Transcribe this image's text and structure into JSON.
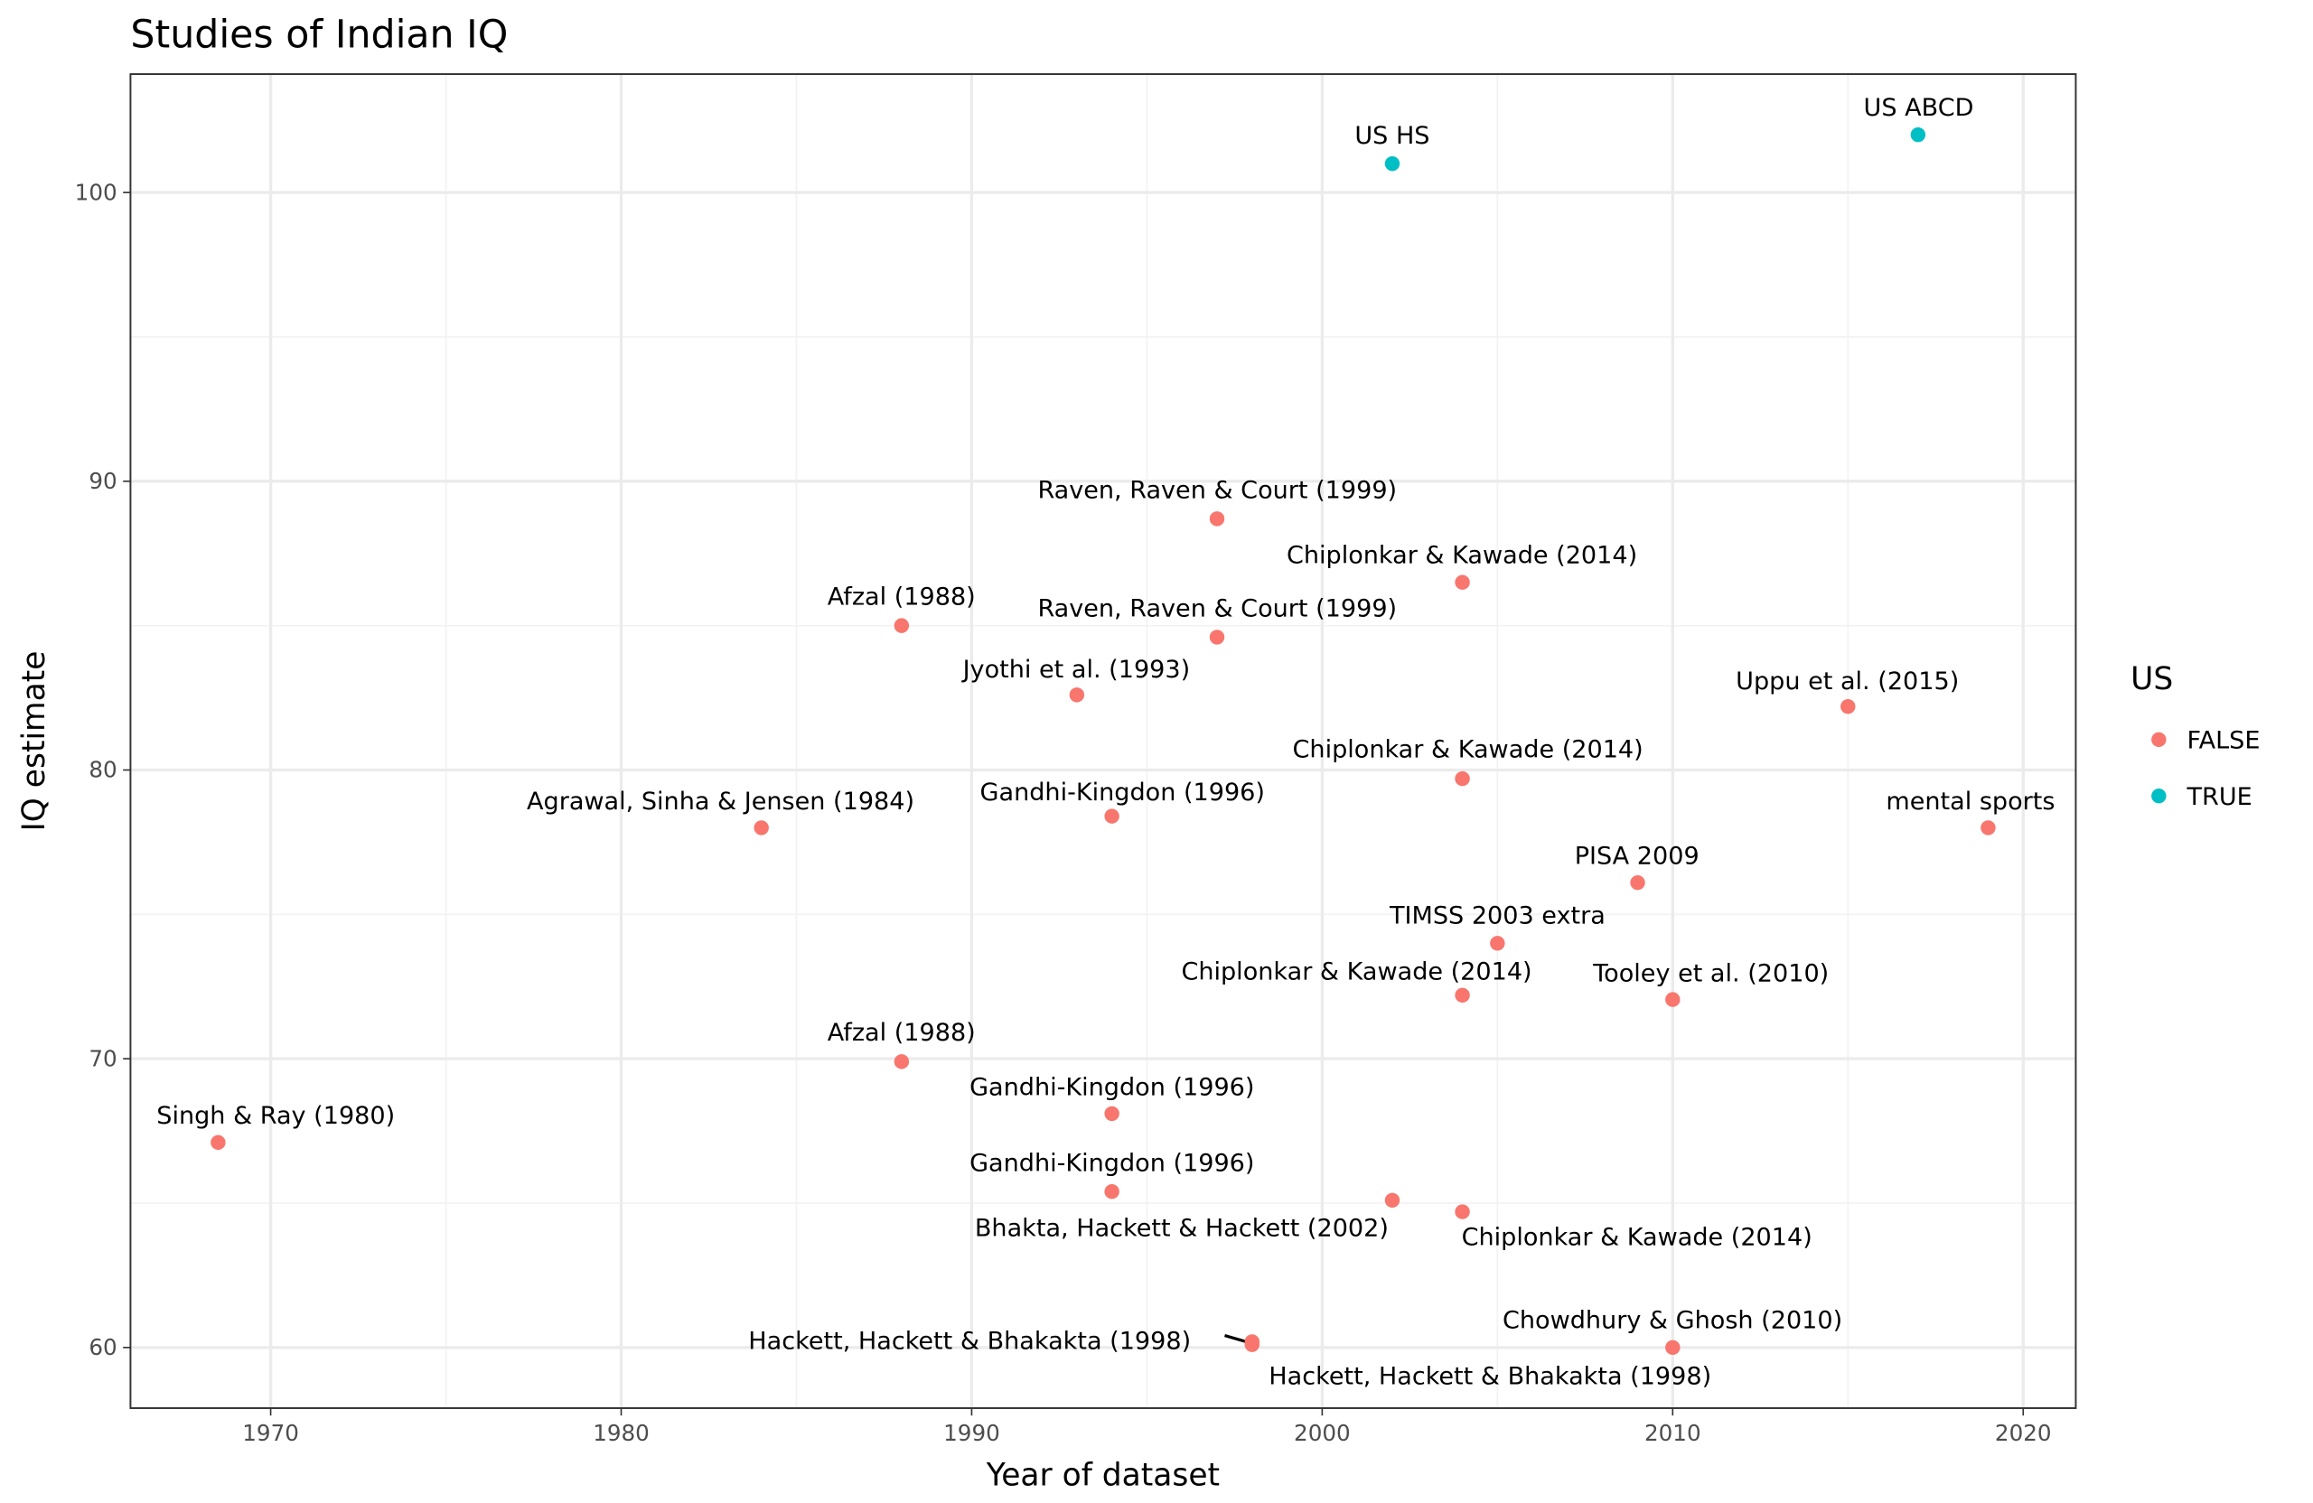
{
  "chart_data": {
    "type": "scatter",
    "title": "Studies of Indian IQ",
    "xlabel": "Year of dataset",
    "ylabel": "IQ estimate",
    "xlim": [
      1966,
      2021.5
    ],
    "ylim": [
      57.9,
      104.1
    ],
    "xticks": [
      1970,
      1980,
      1990,
      2000,
      2010,
      2020
    ],
    "yticks": [
      60,
      70,
      80,
      90,
      100
    ],
    "grid": true,
    "legend": {
      "title": "US",
      "placement": "right",
      "entries": [
        {
          "label": "FALSE",
          "color": "#F8766D"
        },
        {
          "label": "TRUE",
          "color": "#00BFC4"
        }
      ]
    },
    "points": [
      {
        "label": "Singh & Ray (1980)",
        "x": 1968.5,
        "y": 67.1,
        "us": "FALSE"
      },
      {
        "label": "Agrawal, Sinha & Jensen (1984)",
        "x": 1984,
        "y": 78.0,
        "us": "FALSE"
      },
      {
        "label": "Afzal (1988)",
        "x": 1988,
        "y": 85.0,
        "us": "FALSE"
      },
      {
        "label": "Afzal (1988)",
        "x": 1988,
        "y": 69.9,
        "us": "FALSE"
      },
      {
        "label": "Jyothi et al. (1993)",
        "x": 1993,
        "y": 82.6,
        "us": "FALSE"
      },
      {
        "label": "Gandhi-Kingdon (1996)",
        "x": 1994,
        "y": 78.4,
        "us": "FALSE"
      },
      {
        "label": "Gandhi-Kingdon (1996)",
        "x": 1994,
        "y": 68.1,
        "us": "FALSE"
      },
      {
        "label": "Gandhi-Kingdon (1996)",
        "x": 1994,
        "y": 65.4,
        "us": "FALSE"
      },
      {
        "label": "Raven, Raven & Court (1999)",
        "x": 1997,
        "y": 88.7,
        "us": "FALSE"
      },
      {
        "label": "Raven, Raven & Court (1999)",
        "x": 1997,
        "y": 84.6,
        "us": "FALSE"
      },
      {
        "label": "Hackett, Hackett & Bhakakta (1998)",
        "x": 1998,
        "y": 60.2,
        "us": "FALSE"
      },
      {
        "label": "Hackett, Hackett & Bhakakta (1998)",
        "x": 1998,
        "y": 60.1,
        "us": "FALSE"
      },
      {
        "label": "Bhakta, Hackett & Hackett (2002)",
        "x": 2002,
        "y": 65.1,
        "us": "FALSE"
      },
      {
        "label": "Chiplonkar & Kawade (2014)",
        "x": 2004,
        "y": 64.7,
        "us": "FALSE"
      },
      {
        "label": "Chiplonkar & Kawade (2014)",
        "x": 2004,
        "y": 72.2,
        "us": "FALSE"
      },
      {
        "label": "Chiplonkar & Kawade (2014)",
        "x": 2004,
        "y": 79.7,
        "us": "FALSE"
      },
      {
        "label": "Chiplonkar & Kawade (2014)",
        "x": 2004,
        "y": 86.5,
        "us": "FALSE"
      },
      {
        "label": "TIMSS 2003 extra",
        "x": 2005,
        "y": 74.0,
        "us": "FALSE"
      },
      {
        "label": "PISA 2009",
        "x": 2009,
        "y": 76.1,
        "us": "FALSE"
      },
      {
        "label": "Tooley et al. (2010)",
        "x": 2010,
        "y": 72.05,
        "us": "FALSE"
      },
      {
        "label": "Chowdhury & Ghosh (2010)",
        "x": 2010,
        "y": 60.0,
        "us": "FALSE"
      },
      {
        "label": "Uppu et al. (2015)",
        "x": 2015,
        "y": 82.2,
        "us": "FALSE"
      },
      {
        "label": "mental sports",
        "x": 2019,
        "y": 78.0,
        "us": "FALSE"
      },
      {
        "label": "US HS",
        "x": 2002,
        "y": 101.0,
        "us": "TRUE"
      },
      {
        "label": "US ABCD",
        "x": 2017,
        "y": 102.0,
        "us": "TRUE"
      }
    ]
  }
}
